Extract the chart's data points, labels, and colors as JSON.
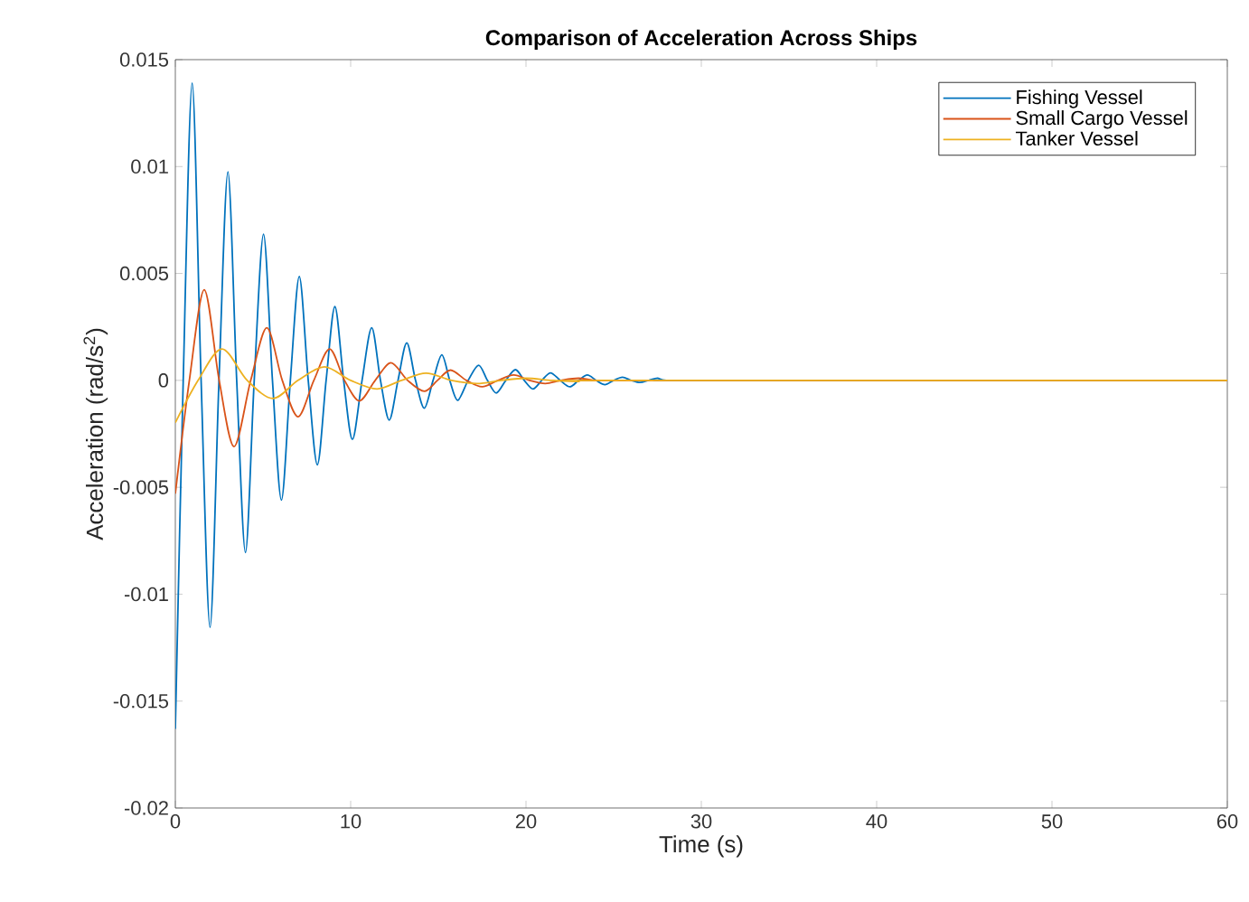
{
  "chart_data": {
    "type": "line",
    "title": "Comparison of Acceleration Across Ships",
    "xlabel": "Time (s)",
    "ylabel": "Acceleration (rad/s$^{2}$)",
    "xlim": [
      0,
      60
    ],
    "ylim": [
      -0.02,
      0.015
    ],
    "xticks": [
      0,
      10,
      20,
      30,
      40,
      50,
      60
    ],
    "yticks": [
      -0.02,
      -0.015,
      -0.01,
      -0.005,
      0,
      0.005,
      0.01,
      0.015
    ],
    "legend": "top right",
    "marker": "none",
    "line_style": "solid",
    "series": [
      {
        "name": "Fishing Vessel",
        "color": "#0072bd",
        "x": [
          0,
          0.45,
          0.96,
          1.47,
          1.98,
          2.49,
          3.0,
          3.5,
          4.0,
          4.5,
          5.03,
          5.54,
          6.05,
          6.56,
          7.07,
          7.58,
          8.1,
          8.6,
          9.1,
          9.6,
          10.1,
          10.65,
          11.2,
          11.7,
          12.2,
          12.7,
          13.2,
          13.7,
          14.2,
          14.7,
          15.2,
          15.65,
          16.1,
          16.7,
          17.3,
          17.8,
          18.3,
          18.85,
          19.4,
          19.9,
          20.4,
          20.9,
          21.4,
          21.95,
          22.5,
          23,
          23.5,
          24,
          24.5,
          25,
          25.5,
          26,
          26.5,
          27,
          27.5,
          28,
          30,
          60
        ],
        "values": [
          -0.0163,
          0,
          0.0139,
          0,
          -0.01155,
          0,
          0.00975,
          0,
          -0.00805,
          0,
          0.00684,
          0,
          -0.0056,
          0,
          0.00486,
          0,
          -0.00395,
          0,
          0.00345,
          0,
          -0.00276,
          0,
          0.00246,
          0,
          -0.00186,
          0,
          0.00175,
          0,
          -0.0013,
          0,
          0.00119,
          0,
          -0.00093,
          0,
          0.00071,
          0,
          -0.00059,
          0,
          0.0005,
          0,
          -0.0004,
          0,
          0.00035,
          0,
          -0.0003,
          0,
          0.00025,
          0,
          -0.0002,
          0,
          0.00015,
          0,
          -0.0001,
          0,
          0.0001,
          0,
          0,
          0
        ]
      },
      {
        "name": "Small Cargo Vessel",
        "color": "#d95319",
        "x": [
          0,
          0.8,
          1.65,
          2.5,
          3.35,
          4.3,
          5.22,
          6.1,
          7.0,
          7.9,
          8.8,
          9.65,
          10.5,
          11.4,
          12.3,
          13.25,
          14.2,
          14.95,
          15.7,
          16.6,
          17.5,
          18.4,
          19.3,
          20.2,
          21.1,
          22,
          23,
          24,
          26,
          60
        ],
        "values": [
          -0.0053,
          0,
          0.00424,
          0,
          -0.0031,
          0,
          0.00246,
          0,
          -0.0017,
          0,
          0.00147,
          0,
          -0.00096,
          0,
          0.00082,
          0,
          -0.00051,
          0,
          0.00048,
          0,
          -0.0003,
          0,
          0.00025,
          0,
          -0.00015,
          0,
          0.0001,
          0,
          0,
          0
        ]
      },
      {
        "name": "Tanker Vessel",
        "color": "#edb120",
        "x": [
          0,
          1.3,
          2.66,
          4.1,
          5.57,
          7.0,
          8.5,
          10,
          11.5,
          12.9,
          14.3,
          15.75,
          17.2,
          18.6,
          20,
          21.5,
          23,
          24.5,
          60
        ],
        "values": [
          -0.00198,
          0,
          0.00147,
          0,
          -0.00085,
          0,
          0.00063,
          0,
          -0.0004,
          0,
          0.00034,
          0,
          -0.00015,
          0,
          0.0001,
          0,
          -5e-05,
          0,
          0
        ]
      }
    ]
  }
}
